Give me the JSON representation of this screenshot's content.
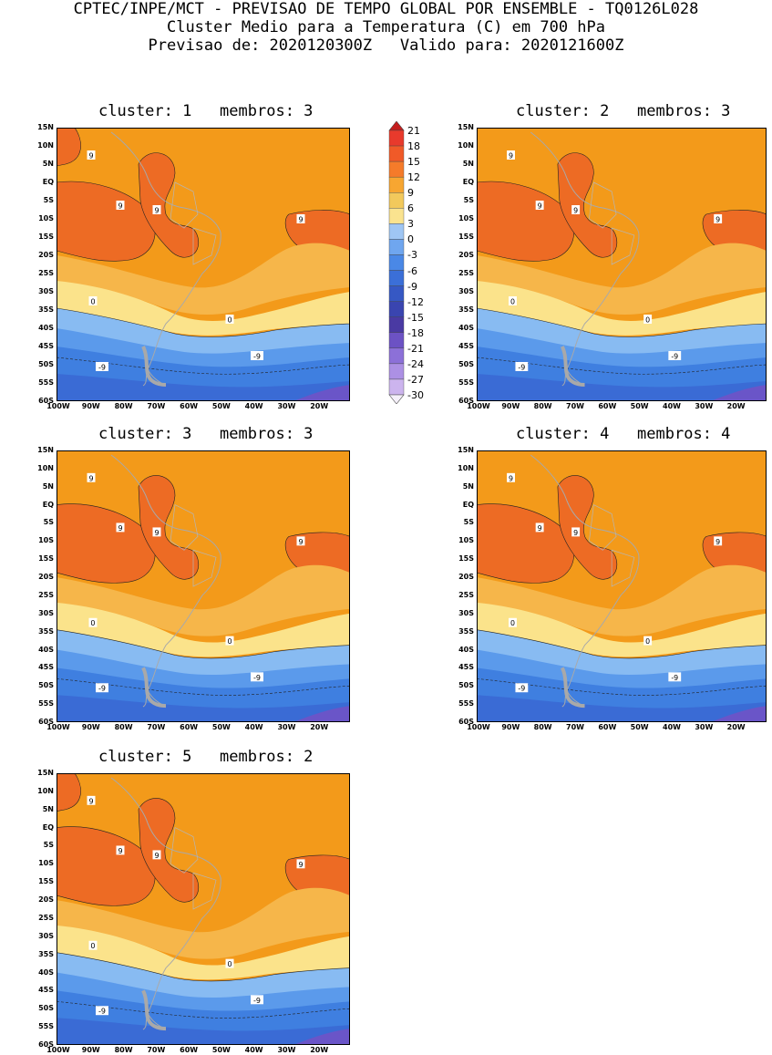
{
  "header": {
    "line1": "CPTEC/INPE/MCT - PREVISAO DE TEMPO GLOBAL POR ENSEMBLE - TQ0126L028",
    "line2": "Cluster Medio para a Temperatura (C) em 700 hPa",
    "line3": "Previsao de: 2020120300Z   Valido para: 2020121600Z"
  },
  "lat_labels": [
    "15N",
    "10N",
    "5N",
    "EQ",
    "5S",
    "10S",
    "15S",
    "20S",
    "25S",
    "30S",
    "35S",
    "40S",
    "45S",
    "50S",
    "55S",
    "60S"
  ],
  "lon_labels": [
    "100W",
    "90W",
    "80W",
    "70W",
    "60W",
    "50W",
    "40W",
    "30W",
    "20W"
  ],
  "colorbar": {
    "levels": [
      "21",
      "18",
      "15",
      "12",
      "9",
      "6",
      "3",
      "0",
      "-3",
      "-6",
      "-9",
      "-12",
      "-15",
      "-18",
      "-21",
      "-24",
      "-27",
      "-30"
    ],
    "colors": [
      "#e83a2c",
      "#f05a28",
      "#f57b2a",
      "#f7a631",
      "#f2c95c",
      "#fae38f",
      "#9fc6f4",
      "#6fa6ef",
      "#4a88e6",
      "#3b6fd8",
      "#3658c4",
      "#3a45b0",
      "#4a3aa3",
      "#6c52c4",
      "#8c70d8",
      "#ac90e4",
      "#ccb4ee"
    ]
  },
  "panels": [
    {
      "title": "cluster: 1   membros: 3"
    },
    {
      "title": "cluster: 2   membros: 3"
    },
    {
      "title": "cluster: 3   membros: 3"
    },
    {
      "title": "cluster: 4   membros: 4"
    },
    {
      "title": "cluster: 5   membros: 2"
    }
  ],
  "contour_labels": {
    "nine": "9",
    "zero": "0",
    "minus_nine": "-9"
  },
  "fills": {
    "orange_warm": "#f39a1a",
    "orange_dark": "#ed6b24",
    "orange_light": "#f6b64a",
    "yellow": "#fbe38b",
    "blue_light": "#88bbf2",
    "blue_mid": "#5b9aeb",
    "blue_dark": "#3f7fe0",
    "blue_deep": "#3a6bd5",
    "purple": "#6a55c8"
  }
}
